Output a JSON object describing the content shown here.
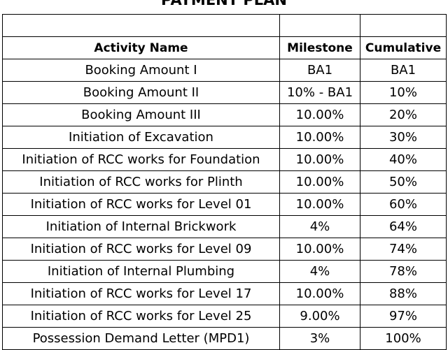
{
  "title": "PAYMENT PLAN",
  "columns": [
    "Activity Name",
    "Milestone",
    "Cumulative"
  ],
  "rows": [
    {
      "activity": "Booking Amount I",
      "milestone": "BA1",
      "cumulative": "BA1"
    },
    {
      "activity": "Booking Amount II",
      "milestone": "10% - BA1",
      "cumulative": "10%"
    },
    {
      "activity": "Booking Amount III",
      "milestone": "10.00%",
      "cumulative": "20%"
    },
    {
      "activity": "Initiation of Excavation",
      "milestone": "10.00%",
      "cumulative": "30%"
    },
    {
      "activity": "Initiation of RCC works for Foundation",
      "milestone": "10.00%",
      "cumulative": "40%"
    },
    {
      "activity": "Initiation of RCC works for Plinth",
      "milestone": "10.00%",
      "cumulative": "50%"
    },
    {
      "activity": "Initiation of RCC works for Level 01",
      "milestone": "10.00%",
      "cumulative": "60%"
    },
    {
      "activity": "Initiation of Internal Brickwork",
      "milestone": "4%",
      "cumulative": "64%"
    },
    {
      "activity": "Initiation of RCC works for Level 09",
      "milestone": "10.00%",
      "cumulative": "74%"
    },
    {
      "activity": "Initiation of Internal Plumbing",
      "milestone": "4%",
      "cumulative": "78%"
    },
    {
      "activity": "Initiation of RCC works for Level 17",
      "milestone": "10.00%",
      "cumulative": "88%"
    },
    {
      "activity": "Initiation of RCC works for Level 25",
      "milestone": "9.00%",
      "cumulative": "97%"
    },
    {
      "activity": "Possession Demand Letter (MPD1)",
      "milestone": "3%",
      "cumulative": "100%"
    }
  ]
}
